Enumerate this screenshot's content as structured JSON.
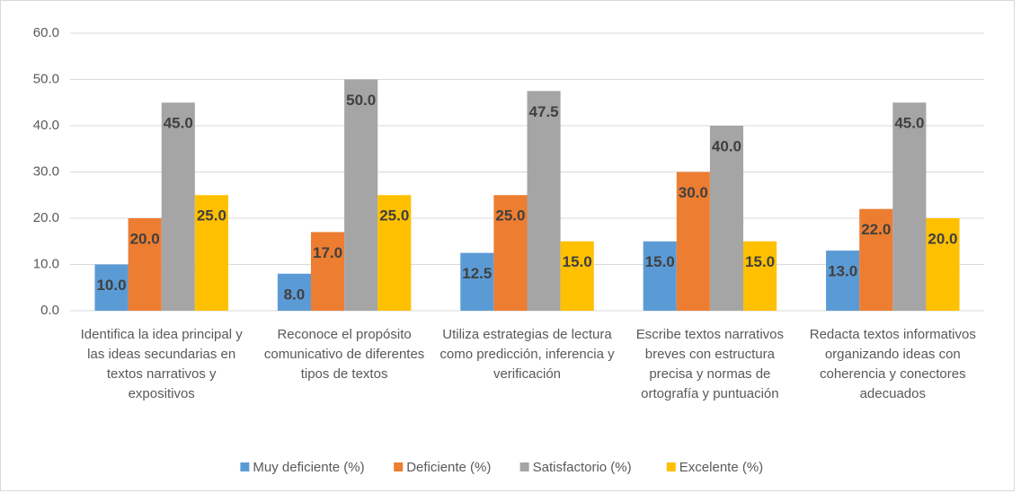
{
  "chart_data": {
    "type": "bar",
    "categories": [
      "Identifica la idea principal y las ideas secundarias en textos narrativos y expositivos",
      "Reconoce el propósito comunicativo de diferentes tipos de textos",
      "Utiliza estrategias de lectura como predicción, inferencia y verificación",
      "Escribe textos narrativos breves con estructura precisa y normas de ortografía y puntuación",
      "Redacta textos informativos organizando ideas con coherencia y conectores adecuados"
    ],
    "series": [
      {
        "name": "Muy deficiente (%)",
        "color": "#5b9bd5",
        "values": [
          10,
          8,
          12.5,
          15,
          13
        ],
        "value_labels": [
          "10.0",
          "8.0",
          "12.5",
          "15.0",
          "13.0"
        ]
      },
      {
        "name": "Deficiente (%)",
        "color": "#ed7d31",
        "values": [
          20,
          17,
          25,
          30,
          22
        ],
        "value_labels": [
          "20.0",
          "17.0",
          "25.0",
          "30.0",
          "22.0"
        ]
      },
      {
        "name": "Satisfactorio (%)",
        "color": "#a5a5a5",
        "values": [
          45,
          50,
          47.5,
          40,
          45
        ],
        "value_labels": [
          "45.0",
          "50.0",
          "47.5",
          "40.0",
          "45.0"
        ]
      },
      {
        "name": "Excelente (%)",
        "color": "#ffc000",
        "values": [
          25,
          25,
          15,
          15,
          20
        ],
        "value_labels": [
          "25.0",
          "25.0",
          "15.0",
          "15.0",
          "20.0"
        ]
      }
    ],
    "ylim": [
      0,
      60
    ],
    "yticks": [
      {
        "value": 0,
        "label": "0.0"
      },
      {
        "value": 10,
        "label": "10.0"
      },
      {
        "value": 20,
        "label": "20.0"
      },
      {
        "value": 30,
        "label": "30.0"
      },
      {
        "value": 40,
        "label": "40.0"
      },
      {
        "value": 50,
        "label": "50.0"
      },
      {
        "value": 60,
        "label": "60.0"
      }
    ],
    "grid": true,
    "legend": "bottom"
  }
}
